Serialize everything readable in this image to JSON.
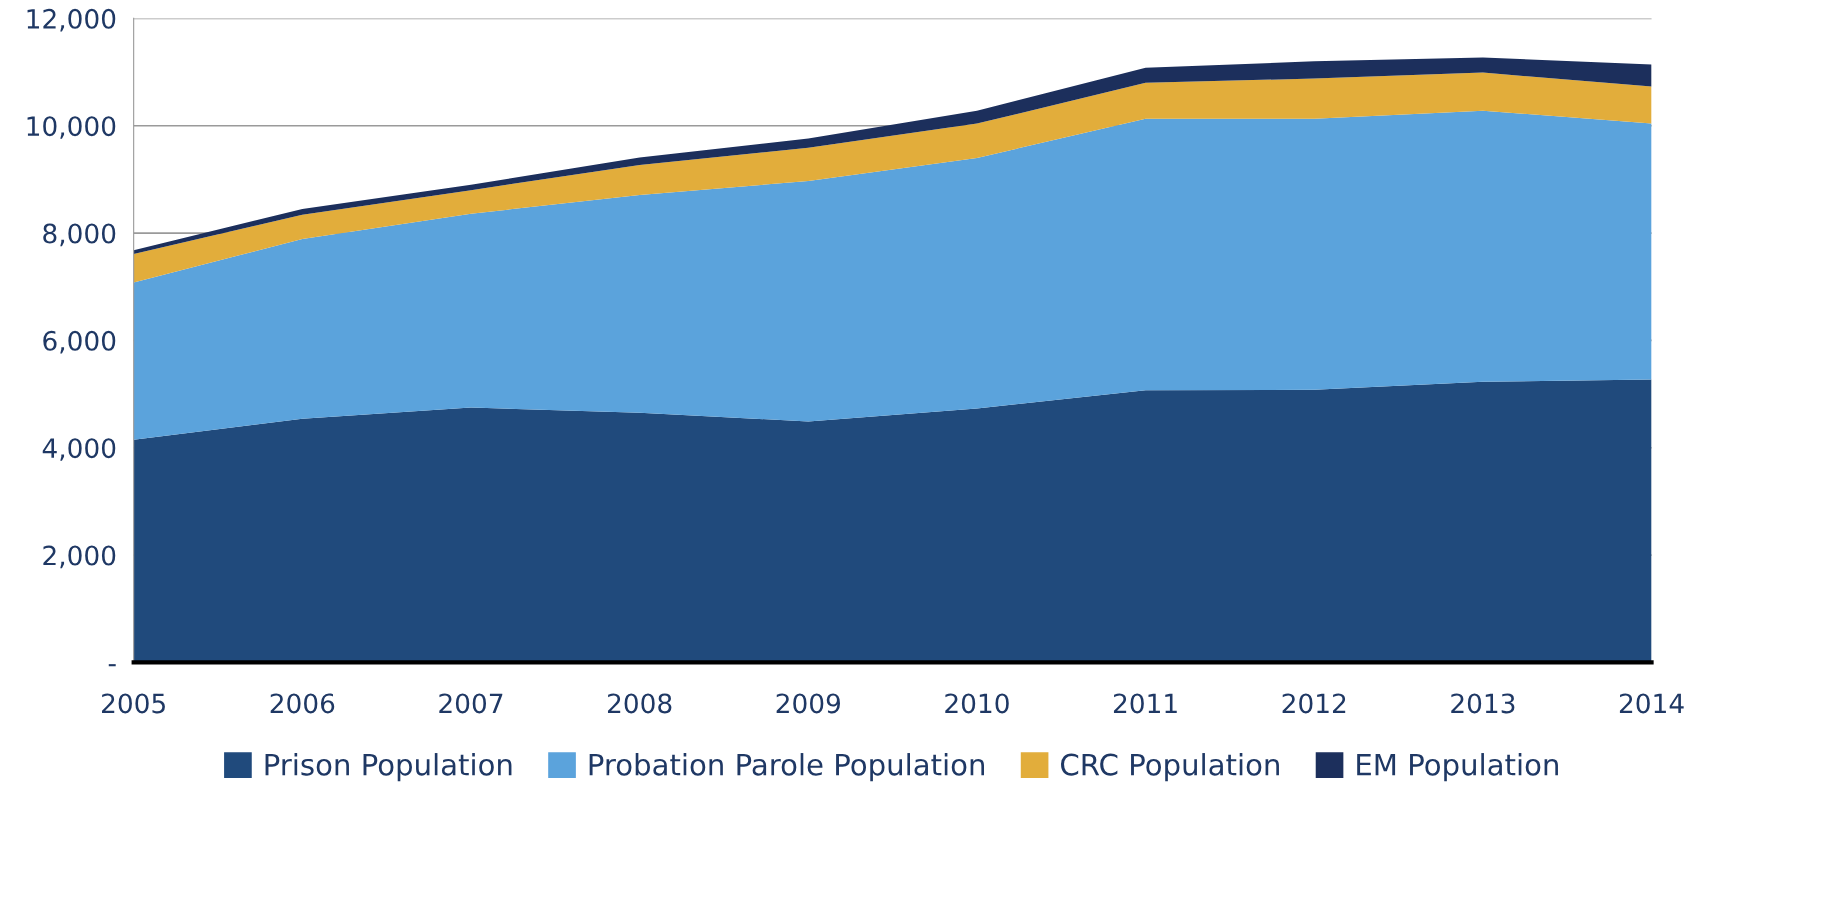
{
  "chart_data": {
    "type": "area",
    "stacked": true,
    "categories": [
      "2005",
      "2006",
      "2007",
      "2008",
      "2009",
      "2010",
      "2011",
      "2012",
      "2013",
      "2014"
    ],
    "series": [
      {
        "name": "Prison Population",
        "color": "#204a7c",
        "values": [
          4150,
          4540,
          4750,
          4650,
          4490,
          4730,
          5070,
          5080,
          5230,
          5270
        ]
      },
      {
        "name": "Probation Parole Population",
        "color": "#5ba3dc",
        "values": [
          2930,
          3350,
          3610,
          4060,
          4480,
          4670,
          5060,
          5050,
          5050,
          4770
        ]
      },
      {
        "name": "CRC Population",
        "color": "#e2ad3b",
        "values": [
          530,
          450,
          440,
          560,
          620,
          640,
          670,
          750,
          710,
          690
        ]
      },
      {
        "name": "EM Population",
        "color": "#1c2f5c",
        "values": [
          70,
          110,
          100,
          140,
          170,
          240,
          280,
          320,
          280,
          410
        ]
      }
    ],
    "ylim": [
      0,
      12000
    ],
    "yticks": [
      {
        "value": 0,
        "label": "-"
      },
      {
        "value": 2000,
        "label": "2,000"
      },
      {
        "value": 4000,
        "label": "4,000"
      },
      {
        "value": 6000,
        "label": "6,000"
      },
      {
        "value": 8000,
        "label": "8,000"
      },
      {
        "value": 10000,
        "label": "10,000"
      },
      {
        "value": 12000,
        "label": "12,000"
      }
    ],
    "grid": "y",
    "legend": "bottom"
  }
}
